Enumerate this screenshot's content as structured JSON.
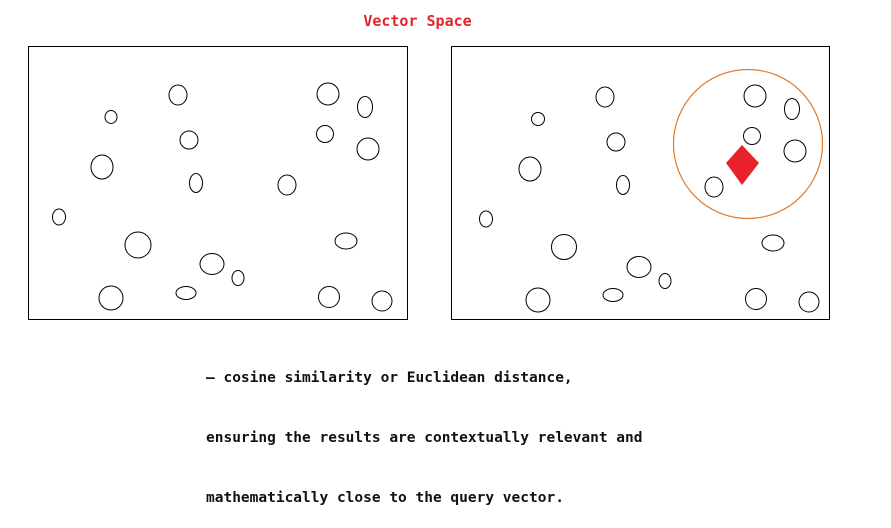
{
  "title": "Vector Space",
  "caption": {
    "lines": [
      "– cosine similarity or Euclidean distance,",
      "ensuring the results are contextually relevant and",
      "mathematically close to the query vector."
    ]
  },
  "colors": {
    "title": "#e8212b",
    "query_vector": "#e8212b",
    "search_radius": "#e07a2c",
    "points": "#000000",
    "frame": "#000000"
  },
  "diagram": {
    "panels": [
      {
        "id": "vector-space-panel",
        "shows_query": false
      },
      {
        "id": "query-result-panel",
        "shows_query": true,
        "query_marker": "diamond",
        "search_boundary": "circle"
      }
    ]
  }
}
